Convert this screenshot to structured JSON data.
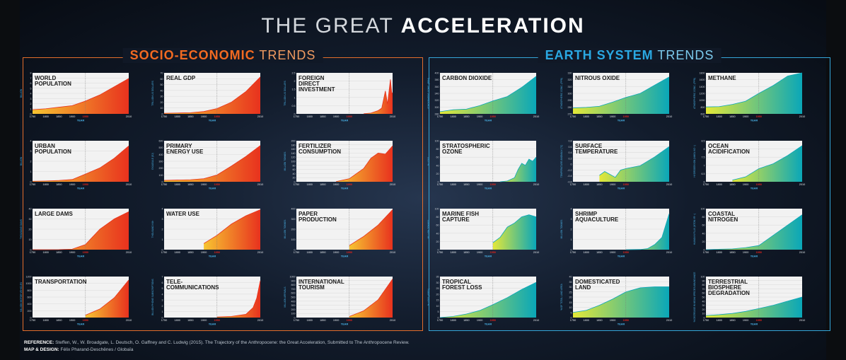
{
  "title_thin": "THE GREAT ",
  "title_bold": "ACCELERATION",
  "panels": {
    "soc": {
      "bold": "SOCIO-ECONOMIC",
      "thin": " TRENDS"
    },
    "earth": {
      "bold": "EARTH SYSTEM",
      "thin": " TRENDS"
    }
  },
  "footer": {
    "ref_label": "REFERENCE:",
    "ref_text": " Steffen, W., W. Broadgate, L. Deutsch, O. Gaffney and C. Ludwig (2015). The Trajectory of the Anthropocene: the Great Acceleration, Submitted to The Anthropocene Review.",
    "design_label": "MAP & DESIGN:",
    "design_text": " Félix Pharand-Deschênes / Globaïa"
  },
  "colors": {
    "socio_start": "#f7c531",
    "socio_end": "#e8321e",
    "earth_start": "#e4e838",
    "earth_end": "#0aa7b8",
    "marker_1950": "#e0231c"
  },
  "chart_data": [
    {
      "id": "world-population",
      "group": "soc",
      "type": "area",
      "label": "WORLD\nPOPULATION",
      "xlabel": "YEAR",
      "ylabel": "BILLION",
      "x_ticks": [
        "1750",
        "1800",
        "1850",
        "1900",
        "1950",
        "2010"
      ],
      "highlight_x": "1950",
      "ylim": [
        0,
        8
      ],
      "y_ticks": [
        "8",
        "7",
        "6",
        "5",
        "4",
        "3",
        "2",
        "1",
        "0"
      ],
      "x": [
        1750,
        1800,
        1850,
        1900,
        1950,
        1970,
        1990,
        2010
      ],
      "y": [
        0.8,
        1.0,
        1.3,
        1.6,
        2.5,
        3.7,
        5.3,
        6.9
      ]
    },
    {
      "id": "real-gdp",
      "group": "soc",
      "type": "area",
      "label": "REAL GDP",
      "xlabel": "YEAR",
      "ylabel": "TRILLION US DOLLARS",
      "x_ticks": [
        "1750",
        "1800",
        "1850",
        "1900",
        "1950",
        "2010"
      ],
      "highlight_x": "1950",
      "ylim": [
        0,
        70
      ],
      "y_ticks": [
        "70",
        "60",
        "50",
        "40",
        "30",
        "20",
        "10",
        "0"
      ],
      "x": [
        1750,
        1800,
        1850,
        1900,
        1950,
        1970,
        1990,
        2010
      ],
      "y": [
        1,
        1.5,
        2,
        4,
        9,
        20,
        38,
        63
      ]
    },
    {
      "id": "foreign-direct-investment",
      "group": "soc",
      "type": "area",
      "label": "FOREIGN\nDIRECT\nINVESTMENT",
      "xlabel": "YEAR",
      "ylabel": "TRILLION US DOLLARS",
      "x_ticks": [
        "1750",
        "1800",
        "1850",
        "1900",
        "1950",
        "2010"
      ],
      "highlight_x": "1950",
      "ylim": [
        0,
        2.5
      ],
      "y_ticks": [
        "2.5",
        "2",
        "1.5",
        "1",
        "0.5",
        "0"
      ],
      "x": [
        1970,
        1980,
        1990,
        1995,
        2000,
        2003,
        2007,
        2009,
        2010
      ],
      "y": [
        0.01,
        0.05,
        0.2,
        0.35,
        1.4,
        0.6,
        2.1,
        1.2,
        1.3
      ]
    },
    {
      "id": "urban-population",
      "group": "soc",
      "type": "area",
      "label": "URBAN\nPOPULATION",
      "xlabel": "YEAR",
      "ylabel": "BILLION",
      "x_ticks": [
        "1750",
        "1800",
        "1850",
        "1900",
        "1950",
        "2010"
      ],
      "highlight_x": "1950",
      "ylim": [
        0,
        4
      ],
      "y_ticks": [
        "4",
        "3",
        "2",
        "1",
        "0"
      ],
      "x": [
        1750,
        1800,
        1850,
        1900,
        1950,
        1970,
        1990,
        2010
      ],
      "y": [
        0.05,
        0.08,
        0.13,
        0.22,
        0.75,
        1.35,
        2.3,
        3.5
      ]
    },
    {
      "id": "primary-energy-use",
      "group": "soc",
      "type": "area",
      "label": "PRIMARY\nENERGY USE",
      "xlabel": "YEAR",
      "ylabel": "EXAJOULE (EJ)",
      "x_ticks": [
        "1750",
        "1800",
        "1850",
        "1900",
        "1950",
        "2010"
      ],
      "highlight_x": "1950",
      "ylim": [
        0,
        600
      ],
      "y_ticks": [
        "600",
        "500",
        "400",
        "300",
        "200",
        "100",
        "0"
      ],
      "x": [
        1750,
        1800,
        1850,
        1900,
        1950,
        1970,
        1990,
        2010
      ],
      "y": [
        20,
        25,
        30,
        45,
        100,
        230,
        370,
        530
      ]
    },
    {
      "id": "fertilizer-consumption",
      "group": "soc",
      "type": "area",
      "label": "FERTILIZER\nCONSUMPTION",
      "xlabel": "YEAR",
      "ylabel": "MILLION TONNES",
      "x_ticks": [
        "1750",
        "1800",
        "1850",
        "1900",
        "1950",
        "2010"
      ],
      "highlight_x": "1950",
      "ylim": [
        0,
        200
      ],
      "y_ticks": [
        "200",
        "180",
        "160",
        "140",
        "120",
        "100",
        "80",
        "60",
        "40",
        "20",
        "0"
      ],
      "x": [
        1900,
        1950,
        1970,
        1980,
        1990,
        2000,
        2010
      ],
      "y": [
        1,
        15,
        65,
        115,
        140,
        135,
        175
      ]
    },
    {
      "id": "large-dams",
      "group": "soc",
      "type": "area",
      "label": "LARGE DAMS",
      "xlabel": "YEAR",
      "ylabel": "THOUSAND DAMS",
      "x_ticks": [
        "1750",
        "1800",
        "1850",
        "1900",
        "1950",
        "2010"
      ],
      "highlight_x": "1950",
      "ylim": [
        0,
        40
      ],
      "y_ticks": [
        "40",
        "30",
        "20",
        "10",
        "0"
      ],
      "x": [
        1750,
        1800,
        1850,
        1900,
        1950,
        1970,
        1990,
        2010
      ],
      "y": [
        0,
        0,
        0.1,
        0.5,
        5,
        20,
        30,
        37
      ]
    },
    {
      "id": "water-use",
      "group": "soc",
      "type": "area",
      "label": "WATER USE",
      "xlabel": "YEAR",
      "ylabel": "THOUSAND KM³",
      "x_ticks": [
        "1750",
        "1800",
        "1850",
        "1900",
        "1950",
        "2010"
      ],
      "highlight_x": "1950",
      "ylim": [
        0,
        4
      ],
      "y_ticks": [
        "4",
        "3",
        "2",
        "1",
        "0"
      ],
      "x": [
        1900,
        1950,
        1970,
        1990,
        2010
      ],
      "y": [
        0.6,
        1.4,
        2.5,
        3.3,
        3.9
      ]
    },
    {
      "id": "paper-production",
      "group": "soc",
      "type": "area",
      "label": "PAPER\nPRODUCTION",
      "xlabel": "YEAR",
      "ylabel": "MILLION TONNES",
      "x_ticks": [
        "1750",
        "1800",
        "1850",
        "1900",
        "1950",
        "2010"
      ],
      "highlight_x": "1950",
      "ylim": [
        0,
        400
      ],
      "y_ticks": [
        "400",
        "300",
        "200",
        "100",
        "0"
      ],
      "x": [
        1950,
        1970,
        1990,
        2010
      ],
      "y": [
        40,
        130,
        240,
        390
      ]
    },
    {
      "id": "transportation",
      "group": "soc",
      "type": "area",
      "label": "TRANSPORTATION",
      "xlabel": "YEAR",
      "ylabel": "MILLION MOTOR VEHICLES",
      "x_ticks": [
        "1750",
        "1800",
        "1850",
        "1900",
        "1950",
        "2010"
      ],
      "highlight_x": "1950",
      "ylim": [
        0,
        1200
      ],
      "y_ticks": [
        "1200",
        "1000",
        "800",
        "600",
        "400",
        "200",
        "0"
      ],
      "x": [
        1950,
        1970,
        1990,
        2010
      ],
      "y": [
        70,
        250,
        580,
        1100
      ]
    },
    {
      "id": "telecommunications",
      "group": "soc",
      "type": "area",
      "label": "TELE-\nCOMMUNICATIONS",
      "xlabel": "YEAR",
      "ylabel": "BILLION PHONE SUBSCRIPTIONS",
      "x_ticks": [
        "1750",
        "1800",
        "1850",
        "1900",
        "1950",
        "2010"
      ],
      "highlight_x": "1950",
      "ylim": [
        0,
        7
      ],
      "y_ticks": [
        "7",
        "6",
        "5",
        "4",
        "3",
        "2",
        "1",
        "0"
      ],
      "x": [
        1950,
        1970,
        1990,
        2000,
        2005,
        2010
      ],
      "y": [
        0.1,
        0.2,
        0.55,
        1.7,
        3.3,
        6.3
      ]
    },
    {
      "id": "international-tourism",
      "group": "soc",
      "type": "area",
      "label": "INTERNATIONAL\nTOURISM",
      "xlabel": "YEAR",
      "ylabel": "MILLION ARRIVALS",
      "x_ticks": [
        "1750",
        "1800",
        "1850",
        "1900",
        "1950",
        "2010"
      ],
      "highlight_x": "1950",
      "ylim": [
        0,
        1000
      ],
      "y_ticks": [
        "1000",
        "900",
        "800",
        "700",
        "600",
        "500",
        "400",
        "300",
        "200",
        "100",
        "0"
      ],
      "x": [
        1950,
        1970,
        1990,
        2010
      ],
      "y": [
        25,
        165,
        435,
        940
      ]
    },
    {
      "id": "carbon-dioxide",
      "group": "earth",
      "type": "area",
      "label": "CARBON DIOXIDE",
      "xlabel": "YEAR",
      "ylabel": "ATMOSPHERIC CONC. (PPM)",
      "x_ticks": [
        "1750",
        "1800",
        "1850",
        "1900",
        "1950",
        "2010"
      ],
      "highlight_x": "1950",
      "ylim": [
        270,
        400
      ],
      "y_ticks": [
        "400",
        "380",
        "360",
        "340",
        "320",
        "300",
        "280"
      ],
      "x": [
        1750,
        1800,
        1850,
        1900,
        1950,
        1970,
        1990,
        2010
      ],
      "y": [
        277,
        283,
        285,
        296,
        311,
        325,
        354,
        389
      ]
    },
    {
      "id": "nitrous-oxide",
      "group": "earth",
      "type": "area",
      "label": "NITROUS OXIDE",
      "xlabel": "YEAR",
      "ylabel": "ATMOSPHERIC CONC. (PPB)",
      "x_ticks": [
        "1750",
        "1800",
        "1850",
        "1900",
        "1950",
        "2010"
      ],
      "highlight_x": "1950",
      "ylim": [
        260,
        330
      ],
      "y_ticks": [
        "330",
        "320",
        "310",
        "300",
        "290",
        "280",
        "270"
      ],
      "x": [
        1750,
        1800,
        1850,
        1900,
        1950,
        1970,
        1990,
        2010
      ],
      "y": [
        270,
        271,
        273,
        280,
        288,
        295,
        309,
        323
      ]
    },
    {
      "id": "methane",
      "group": "earth",
      "type": "area",
      "label": "METHANE",
      "xlabel": "YEAR",
      "ylabel": "ATMOSPHERIC CONC. (PPB)",
      "x_ticks": [
        "1750",
        "1800",
        "1850",
        "1900",
        "1950",
        "2010"
      ],
      "highlight_x": "1950",
      "ylim": [
        500,
        1800
      ],
      "y_ticks": [
        "1800",
        "1600",
        "1400",
        "1200",
        "1000",
        "800",
        "600"
      ],
      "x": [
        1750,
        1800,
        1850,
        1900,
        1950,
        1970,
        1990,
        2010
      ],
      "y": [
        720,
        730,
        800,
        900,
        1150,
        1400,
        1700,
        1800
      ]
    },
    {
      "id": "stratospheric-ozone",
      "group": "earth",
      "type": "area",
      "label": "STRATOSPHERIC\nOZONE",
      "xlabel": "YEAR",
      "ylabel": "% LOSS",
      "x_ticks": [
        "1750",
        "1800",
        "1850",
        "1900",
        "1950",
        "2010"
      ],
      "highlight_x": "1950",
      "ylim": [
        0,
        100
      ],
      "y_ticks": [
        "100",
        "80",
        "60",
        "40",
        "20",
        "0"
      ],
      "x": [
        1960,
        1970,
        1980,
        1985,
        1990,
        1995,
        2000,
        2005,
        2010
      ],
      "y": [
        0,
        2,
        10,
        30,
        45,
        40,
        55,
        50,
        60
      ]
    },
    {
      "id": "surface-temperature",
      "group": "earth",
      "type": "area",
      "label": "SURFACE\nTEMPERATURE",
      "xlabel": "YEAR",
      "ylabel": "TEMPERATURE ANOMALY (°C)",
      "x_ticks": [
        "1750",
        "1800",
        "1850",
        "1900",
        "1950",
        "2010"
      ],
      "highlight_x": "1950",
      "ylim": [
        -0.6,
        0.8
      ],
      "y_ticks": [
        "0.8",
        "0.6",
        "0.4",
        "0.2",
        "0",
        "-0.2",
        "-0.4",
        "-0.6"
      ],
      "x": [
        1850,
        1870,
        1890,
        1910,
        1930,
        1950,
        1970,
        1990,
        2010
      ],
      "y": [
        -0.38,
        -0.25,
        -0.35,
        -0.45,
        -0.2,
        -0.15,
        -0.05,
        0.25,
        0.6
      ]
    },
    {
      "id": "ocean-acidification",
      "group": "earth",
      "type": "area",
      "label": "OCEAN\nACIDIFICATION",
      "xlabel": "YEAR",
      "ylabel": "HYDROGEN ION (NMOL KG⁻¹)",
      "x_ticks": [
        "1750",
        "1800",
        "1850",
        "1900",
        "1950",
        "2010"
      ],
      "highlight_x": "1950",
      "ylim": [
        6,
        8.5
      ],
      "y_ticks": [
        "8.5",
        "8",
        "7.5",
        "7",
        "6.5",
        "6"
      ],
      "x": [
        1850,
        1900,
        1950,
        1970,
        1990,
        2010
      ],
      "y": [
        6.1,
        6.3,
        6.8,
        7.1,
        7.6,
        8.2
      ]
    },
    {
      "id": "marine-fish-capture",
      "group": "earth",
      "type": "area",
      "label": "MARINE FISH\nCAPTURE",
      "xlabel": "YEAR",
      "ylabel": "MILLION TONNES",
      "x_ticks": [
        "1750",
        "1800",
        "1850",
        "1900",
        "1950",
        "2010"
      ],
      "highlight_x": "1950",
      "ylim": [
        0,
        100
      ],
      "y_ticks": [
        "100",
        "80",
        "60",
        "40",
        "20",
        "0"
      ],
      "x": [
        1950,
        1960,
        1970,
        1980,
        1990,
        2000,
        2010
      ],
      "y": [
        17,
        30,
        55,
        65,
        80,
        85,
        80
      ]
    },
    {
      "id": "shrimp-aquaculture",
      "group": "earth",
      "type": "area",
      "label": "SHRIMP\nAQUACULTURE",
      "xlabel": "YEAR",
      "ylabel": "MILLION TONNES",
      "x_ticks": [
        "1750",
        "1800",
        "1850",
        "1900",
        "1950",
        "2010"
      ],
      "highlight_x": "1950",
      "ylim": [
        0,
        4
      ],
      "y_ticks": [
        "4",
        "3",
        "2",
        "1",
        "0"
      ],
      "x": [
        1950,
        1970,
        1980,
        1990,
        2000,
        2010
      ],
      "y": [
        0,
        0.02,
        0.1,
        0.5,
        1.2,
        3.5
      ]
    },
    {
      "id": "coastal-nitrogen",
      "group": "earth",
      "type": "area",
      "label": "COASTAL\nNITROGEN",
      "xlabel": "YEAR",
      "ylabel": "HUMAN N FLUX (MTON YR⁻¹)",
      "x_ticks": [
        "1750",
        "1800",
        "1850",
        "1900",
        "1950",
        "2010"
      ],
      "highlight_x": "1950",
      "ylim": [
        0,
        100
      ],
      "y_ticks": [
        "100",
        "80",
        "60",
        "40",
        "20",
        "0"
      ],
      "x": [
        1750,
        1850,
        1900,
        1950,
        1970,
        1990,
        2010
      ],
      "y": [
        0,
        2,
        5,
        10,
        35,
        60,
        85
      ]
    },
    {
      "id": "tropical-forest-loss",
      "group": "earth",
      "type": "area",
      "label": "TROPICAL\nFOREST LOSS",
      "xlabel": "YEAR",
      "ylabel": "% LOSS (AREA)",
      "x_ticks": [
        "1750",
        "1800",
        "1850",
        "1900",
        "1950",
        "2010"
      ],
      "highlight_x": "1950",
      "ylim": [
        0,
        35
      ],
      "y_ticks": [
        "35",
        "30",
        "25",
        "20",
        "15",
        "10",
        "5",
        "0"
      ],
      "x": [
        1750,
        1800,
        1850,
        1900,
        1950,
        1970,
        1990,
        2010
      ],
      "y": [
        0,
        1,
        3,
        6,
        11,
        17,
        24,
        30
      ]
    },
    {
      "id": "domesticated-land",
      "group": "earth",
      "type": "area",
      "label": "DOMESTICATED\nLAND",
      "xlabel": "YEAR",
      "ylabel": "% OF TOTAL LAND AREA",
      "x_ticks": [
        "1750",
        "1800",
        "1850",
        "1900",
        "1950",
        "2010"
      ],
      "highlight_x": "1950",
      "ylim": [
        0,
        40
      ],
      "y_ticks": [
        "40",
        "35",
        "30",
        "25",
        "20",
        "15",
        "10",
        "5",
        "0"
      ],
      "x": [
        1750,
        1800,
        1850,
        1900,
        1950,
        1970,
        1990,
        2010
      ],
      "y": [
        5,
        7,
        12,
        18,
        25,
        29,
        30,
        30
      ]
    },
    {
      "id": "terrestrial-biosphere-degradation",
      "group": "earth",
      "type": "area",
      "label": "TERRESTRIAL\nBIOSPHERE\nDEGRADATION",
      "xlabel": "YEAR",
      "ylabel": "% DECREASE IN MEAN SPECIES ABUNDANCE",
      "x_ticks": [
        "1750",
        "1800",
        "1850",
        "1900",
        "1950",
        "2010"
      ],
      "highlight_x": "1950",
      "ylim": [
        0,
        100
      ],
      "y_ticks": [
        "100",
        "90",
        "80",
        "70",
        "60",
        "50",
        "40",
        "30",
        "20",
        "10",
        "0"
      ],
      "x": [
        1750,
        1800,
        1850,
        1900,
        1950,
        1970,
        1990,
        2010
      ],
      "y": [
        5,
        7,
        10,
        15,
        22,
        30,
        40,
        50
      ]
    }
  ]
}
